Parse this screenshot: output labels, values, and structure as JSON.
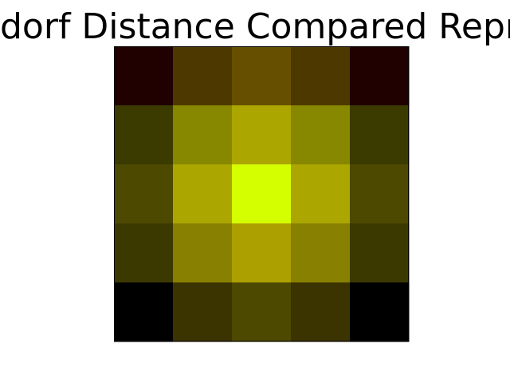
{
  "chart_data": {
    "type": "heatmap",
    "title": "dorf Distance Compared Repr",
    "xlabel": "",
    "ylabel": "",
    "grid": false,
    "rows": 5,
    "cols": 5,
    "cell_colors": [
      [
        "#210000",
        "#4d3900",
        "#665000",
        "#4d3900",
        "#210000"
      ],
      [
        "#3b3b00",
        "#878700",
        "#aba600",
        "#878700",
        "#3b3b00"
      ],
      [
        "#4d4900",
        "#aba600",
        "#d4ff00",
        "#aba600",
        "#4d4900"
      ],
      [
        "#3b3900",
        "#878000",
        "#aba000",
        "#878000",
        "#3b3900"
      ],
      [
        "#000000",
        "#3b3300",
        "#4d4900",
        "#3b3300",
        "#000000"
      ]
    ]
  }
}
